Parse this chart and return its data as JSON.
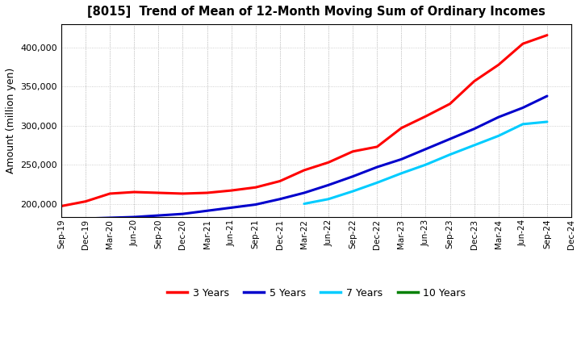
{
  "title": "[8015]  Trend of Mean of 12-Month Moving Sum of Ordinary Incomes",
  "ylabel": "Amount (million yen)",
  "background_color": "#ffffff",
  "grid_color": "#bbbbbb",
  "x_labels": [
    "Sep-19",
    "Dec-19",
    "Mar-20",
    "Jun-20",
    "Sep-20",
    "Dec-20",
    "Mar-21",
    "Jun-21",
    "Sep-21",
    "Dec-21",
    "Mar-22",
    "Jun-22",
    "Sep-22",
    "Dec-22",
    "Mar-23",
    "Jun-23",
    "Sep-23",
    "Dec-23",
    "Mar-24",
    "Jun-24",
    "Sep-24",
    "Dec-24"
  ],
  "series": {
    "3 Years": {
      "color": "#ff0000",
      "data_x": [
        0,
        1,
        2,
        3,
        4,
        5,
        6,
        7,
        8,
        9,
        10,
        11,
        12,
        13,
        14,
        15,
        16,
        17,
        18,
        19,
        20
      ],
      "data_y": [
        197000,
        203000,
        213000,
        215000,
        214000,
        213000,
        214000,
        217000,
        221000,
        229000,
        243000,
        253000,
        267000,
        273000,
        297000,
        312000,
        328000,
        357000,
        378000,
        405000,
        416000
      ]
    },
    "5 Years": {
      "color": "#0000cc",
      "data_x": [
        1,
        2,
        3,
        4,
        5,
        6,
        7,
        8,
        9,
        10,
        11,
        12,
        13,
        14,
        15,
        16,
        17,
        18,
        19,
        20
      ],
      "data_y": [
        181000,
        182000,
        183000,
        185000,
        187000,
        191000,
        195000,
        199000,
        206000,
        214000,
        224000,
        235000,
        247000,
        257000,
        270000,
        283000,
        296000,
        311000,
        323000,
        338000
      ]
    },
    "7 Years": {
      "color": "#00ccff",
      "data_x": [
        10,
        11,
        12,
        13,
        14,
        15,
        16,
        17,
        18,
        19,
        20
      ],
      "data_y": [
        200000,
        206000,
        216000,
        227000,
        239000,
        250000,
        263000,
        275000,
        287000,
        302000,
        305000
      ]
    },
    "10 Years": {
      "color": "#008000",
      "data_x": [],
      "data_y": []
    }
  },
  "ylim": [
    183000,
    430000
  ],
  "yticks": [
    200000,
    250000,
    300000,
    350000,
    400000
  ],
  "legend_entries": [
    "3 Years",
    "5 Years",
    "7 Years",
    "10 Years"
  ],
  "legend_colors": [
    "#ff0000",
    "#0000cc",
    "#00ccff",
    "#008000"
  ]
}
